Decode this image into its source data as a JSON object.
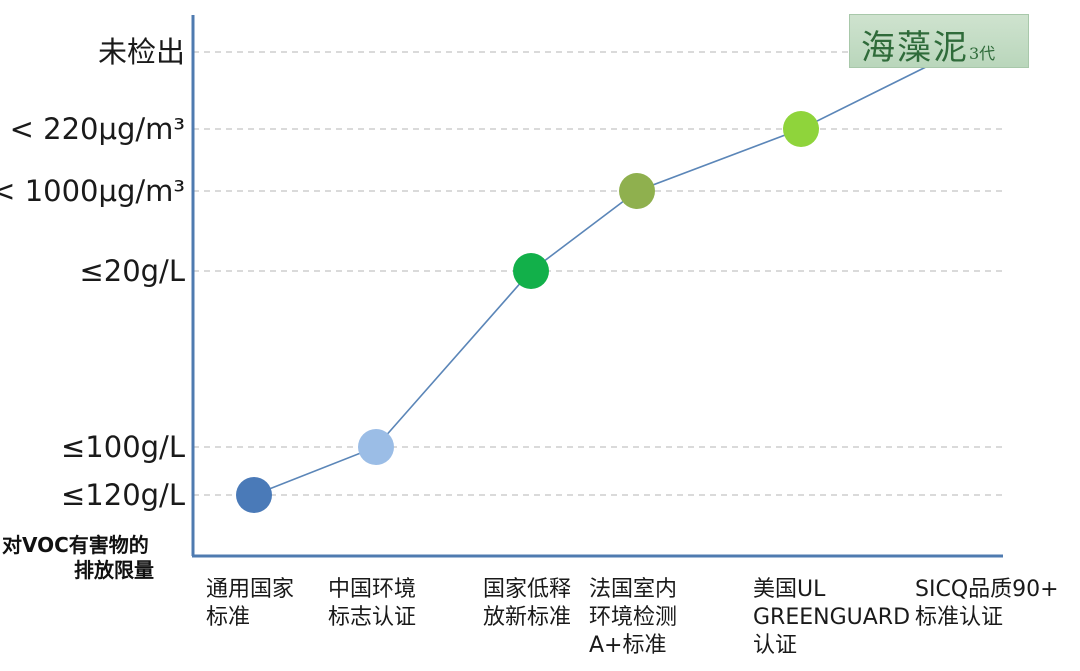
{
  "chart_data": {
    "type": "line",
    "ylabel_lines": [
      "对VOC有害物的",
      "排放限量"
    ],
    "y_ticks": [
      "≤120g/L",
      "≤100g/L",
      "≤20g/L",
      "< 1000μg/m³",
      "< 220μg/m³",
      "未检出"
    ],
    "categories": [
      [
        "通用国家",
        "标准"
      ],
      [
        "中国环境",
        "标志认证"
      ],
      [
        "国家低释",
        "放新标准"
      ],
      [
        "法国室内",
        "环境检测",
        "A+标准"
      ],
      [
        "美国UL",
        "GREENGUARD",
        "认证"
      ],
      [
        "SICQ品质90+",
        "标准认证"
      ]
    ],
    "points": [
      {
        "category_index": 0,
        "y": "≤120g/L",
        "color": "#4a7ab8"
      },
      {
        "category_index": 1,
        "y": "≤100g/L",
        "color": "#9bbde6"
      },
      {
        "category_index": 2,
        "y": "≤20g/L",
        "color": "#12b04a"
      },
      {
        "category_index": 3,
        "y": "< 1000μg/m³",
        "color": "#8fb04e"
      },
      {
        "category_index": 4,
        "y": "< 220μg/m³",
        "color": "#8fd43b"
      },
      {
        "category_index": 5,
        "y": "未检出",
        "color": ""
      }
    ],
    "line_color": "#5b86b8",
    "grid": "dashed horizontal",
    "axis_color": "#4f7bb0"
  },
  "brand": {
    "main": "海藻泥",
    "sub": "3代"
  }
}
